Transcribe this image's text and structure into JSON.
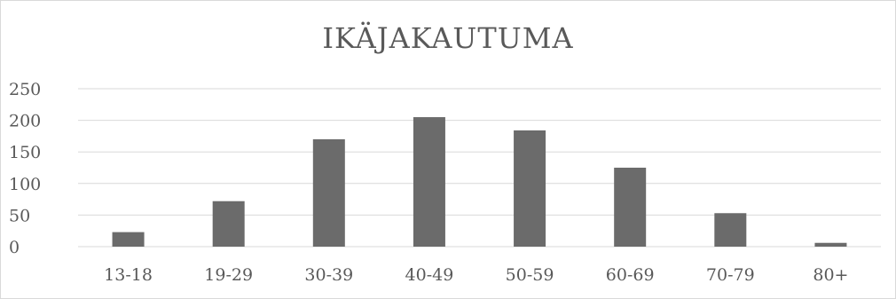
{
  "chart_data": {
    "type": "bar",
    "title": "IKÄJAKAUTUMA",
    "xlabel": "",
    "ylabel": "",
    "categories": [
      "13-18",
      "19-29",
      "30-39",
      "40-49",
      "50-59",
      "60-69",
      "70-79",
      "80+"
    ],
    "values": [
      23,
      72,
      170,
      205,
      184,
      125,
      53,
      6
    ],
    "ylim": [
      0,
      250
    ],
    "yticks": [
      0,
      50,
      100,
      150,
      200,
      250
    ],
    "grid": true,
    "legend": "none",
    "colors": {
      "bar": "#6b6b6b",
      "grid": "#d9d9d9",
      "text": "#595959"
    }
  }
}
